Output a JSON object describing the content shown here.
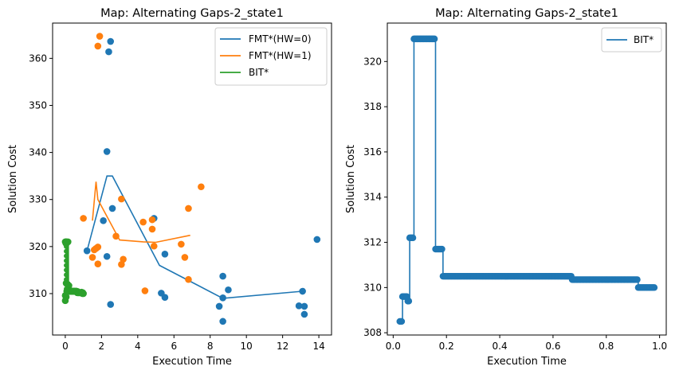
{
  "chart_data": [
    {
      "type": "scatter",
      "title": "Map: Alternating Gaps-2_state1",
      "xlabel": "Execution Time",
      "ylabel": "Solution Cost",
      "xlim": [
        -0.7,
        14.7
      ],
      "ylim": [
        301.2,
        367.5
      ],
      "xticks": [
        0,
        2,
        4,
        6,
        8,
        10,
        12,
        14
      ],
      "yticks": [
        310,
        320,
        330,
        340,
        350,
        360
      ],
      "legend_position": "top-right",
      "grid": false,
      "series": [
        {
          "name": "FMT*(HW=0)",
          "color": "#1f77b4",
          "scatter": [
            [
              2.5,
              363.6
            ],
            [
              2.4,
              361.4
            ],
            [
              2.3,
              340.2
            ],
            [
              2.6,
              328.1
            ],
            [
              2.1,
              325.5
            ],
            [
              4.9,
              326.0
            ],
            [
              1.2,
              319.1
            ],
            [
              2.3,
              317.9
            ],
            [
              5.5,
              318.4
            ],
            [
              5.3,
              310.1
            ],
            [
              5.5,
              309.2
            ],
            [
              2.5,
              307.7
            ],
            [
              8.7,
              313.7
            ],
            [
              9.0,
              310.8
            ],
            [
              8.7,
              309.1
            ],
            [
              8.5,
              307.3
            ],
            [
              8.7,
              304.1
            ],
            [
              13.1,
              310.5
            ],
            [
              12.9,
              307.4
            ],
            [
              13.2,
              307.3
            ],
            [
              13.2,
              305.6
            ],
            [
              13.9,
              321.5
            ]
          ],
          "line": [
            [
              1.2,
              319.1
            ],
            [
              2.3,
              335.0
            ],
            [
              2.6,
              335.0
            ],
            [
              5.2,
              316.0
            ],
            [
              8.7,
              309.0
            ],
            [
              13.1,
              310.5
            ]
          ]
        },
        {
          "name": "FMT*(HW=1)",
          "color": "#ff7f0e",
          "scatter": [
            [
              1.9,
              364.7
            ],
            [
              1.8,
              362.6
            ],
            [
              3.1,
              330.1
            ],
            [
              7.5,
              332.7
            ],
            [
              6.8,
              328.1
            ],
            [
              1.0,
              326.0
            ],
            [
              4.8,
              325.7
            ],
            [
              4.3,
              325.2
            ],
            [
              4.8,
              323.7
            ],
            [
              2.8,
              322.2
            ],
            [
              4.9,
              320.1
            ],
            [
              6.4,
              320.5
            ],
            [
              1.7,
              319.6
            ],
            [
              1.6,
              319.3
            ],
            [
              1.8,
              319.9
            ],
            [
              1.5,
              317.7
            ],
            [
              3.2,
              317.3
            ],
            [
              3.1,
              316.2
            ],
            [
              6.6,
              317.7
            ],
            [
              1.8,
              316.3
            ],
            [
              4.4,
              310.6
            ],
            [
              6.8,
              313.0
            ]
          ],
          "line": [
            [
              1.5,
              325.5
            ],
            [
              1.7,
              333.8
            ],
            [
              1.8,
              330.0
            ],
            [
              3.0,
              321.4
            ],
            [
              4.3,
              321.0
            ],
            [
              5.0,
              320.9
            ],
            [
              6.9,
              322.4
            ]
          ]
        },
        {
          "name": "BIT*",
          "color": "#2ca02c",
          "scatter": [
            [
              0.0,
              321.0
            ],
            [
              0.08,
              321.0
            ],
            [
              0.15,
              321.0
            ],
            [
              0.05,
              312.2
            ],
            [
              0.12,
              312.0
            ],
            [
              0.2,
              311.7
            ],
            [
              0.0,
              309.6
            ],
            [
              0.05,
              309.3
            ],
            [
              0.0,
              308.5
            ],
            [
              0.3,
              310.6
            ],
            [
              0.5,
              310.5
            ],
            [
              0.7,
              310.4
            ],
            [
              0.9,
              310.3
            ],
            [
              0.95,
              310.0
            ],
            [
              1.0,
              310.0
            ]
          ],
          "line": [
            [
              0.0,
              308.5
            ],
            [
              0.0,
              309.6
            ],
            [
              0.05,
              309.3
            ],
            [
              0.06,
              312.2
            ],
            [
              0.08,
              321.0
            ],
            [
              0.15,
              321.0
            ],
            [
              0.16,
              311.7
            ],
            [
              0.2,
              310.5
            ],
            [
              0.65,
              310.5
            ],
            [
              0.68,
              310.3
            ],
            [
              0.92,
              310.3
            ],
            [
              0.93,
              310.0
            ],
            [
              0.98,
              310.0
            ]
          ]
        }
      ]
    },
    {
      "type": "line",
      "title": "Map: Alternating Gaps-2_state1",
      "xlabel": "Execution Time",
      "ylabel": "Solution Cost",
      "xlim": [
        -0.022,
        1.025
      ],
      "ylim": [
        307.9,
        321.7
      ],
      "xticks": [
        0.0,
        0.2,
        0.4,
        0.6,
        0.8,
        1.0
      ],
      "xtick_labels": [
        "0.0",
        "0.2",
        "0.4",
        "0.6",
        "0.8",
        "1.0"
      ],
      "yticks": [
        308,
        310,
        312,
        314,
        316,
        318,
        320
      ],
      "legend_position": "top-right",
      "grid": false,
      "series": [
        {
          "name": "BIT*",
          "color": "#1f77b4",
          "markers": true,
          "steps": [
            [
              0.025,
              308.5
            ],
            [
              0.035,
              309.6
            ],
            [
              0.055,
              309.4
            ],
            [
              0.062,
              312.2
            ],
            [
              0.078,
              321.0
            ],
            [
              0.159,
              311.7
            ],
            [
              0.187,
              310.5
            ],
            [
              0.672,
              310.35
            ],
            [
              0.92,
              310.0
            ],
            [
              0.98,
              310.0
            ]
          ]
        }
      ]
    }
  ]
}
